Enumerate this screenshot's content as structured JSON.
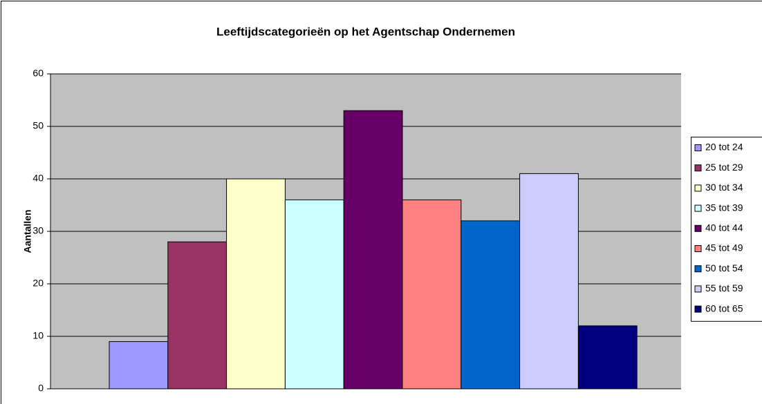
{
  "chart_data": {
    "type": "bar",
    "title": "Leeftijdscategorieën op het Agentschap Ondernemen",
    "y_label": "Aantallen",
    "series": [
      {
        "name": "20 tot 24",
        "color": "#9999ff",
        "values": [
          9
        ]
      },
      {
        "name": "25 tot 29",
        "color": "#993366",
        "values": [
          28
        ]
      },
      {
        "name": "30 tot 34",
        "color": "#ffffcc",
        "values": [
          40
        ]
      },
      {
        "name": "35 tot 39",
        "color": "#ccffff",
        "values": [
          36
        ]
      },
      {
        "name": "40 tot 44",
        "color": "#660066",
        "values": [
          53
        ]
      },
      {
        "name": "45 tot 49",
        "color": "#ff8080",
        "values": [
          36
        ]
      },
      {
        "name": "50 tot 54",
        "color": "#0066cc",
        "values": [
          32
        ]
      },
      {
        "name": "55 tot 59",
        "color": "#ccccff",
        "values": [
          41
        ]
      },
      {
        "name": "60 tot 65",
        "color": "#000080",
        "values": [
          12
        ]
      }
    ],
    "ylim": [
      0,
      60
    ],
    "yticks": [
      0,
      10,
      20,
      30,
      40,
      50,
      60
    ],
    "grid": true,
    "legend": "right",
    "plot_background": "#c0c0c0"
  }
}
